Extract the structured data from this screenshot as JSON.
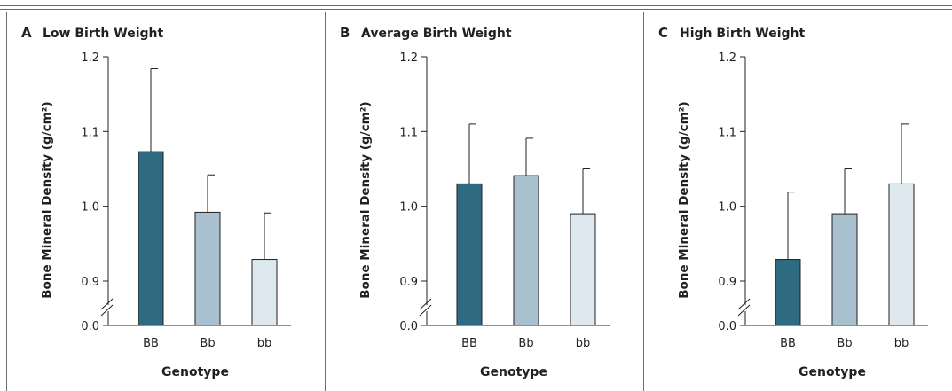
{
  "colors": {
    "BB": "#2e6a80",
    "Bb": "#a9c1cf",
    "bb": "#dde8ef",
    "axis": "#231f20",
    "rule": "#6d6e71"
  },
  "chart_data": [
    {
      "type": "bar",
      "panel_letter": "A",
      "title": "Low Birth Weight",
      "xlabel": "Genotype",
      "ylabel": "Bone Mineral Density (g/cm²)",
      "ylim": [
        0.85,
        1.2
      ],
      "yticks": [
        "0.0",
        "0.9",
        "1.0",
        "1.1",
        "1.2"
      ],
      "axis_break": true,
      "categories": [
        "BB",
        "Bb",
        "bb"
      ],
      "values": [
        1.073,
        0.992,
        0.929
      ],
      "error_upper": [
        1.184,
        1.042,
        0.991
      ],
      "grid": false,
      "legend": "none"
    },
    {
      "type": "bar",
      "panel_letter": "B",
      "title": "Average Birth Weight",
      "xlabel": "Genotype",
      "ylabel": "Bone Mineral Density (g/cm²)",
      "ylim": [
        0.85,
        1.2
      ],
      "yticks": [
        "0.0",
        "0.9",
        "1.0",
        "1.1",
        "1.2"
      ],
      "axis_break": true,
      "categories": [
        "BB",
        "Bb",
        "bb"
      ],
      "values": [
        1.03,
        1.041,
        0.99
      ],
      "error_upper": [
        1.11,
        1.091,
        1.05
      ],
      "grid": false,
      "legend": "none"
    },
    {
      "type": "bar",
      "panel_letter": "C",
      "title": "High Birth Weight",
      "xlabel": "Genotype",
      "ylabel": "Bone Mineral Density (g/cm²)",
      "ylim": [
        0.85,
        1.2
      ],
      "yticks": [
        "0.0",
        "0.9",
        "1.0",
        "1.1",
        "1.2"
      ],
      "axis_break": true,
      "categories": [
        "BB",
        "Bb",
        "bb"
      ],
      "values": [
        0.929,
        0.99,
        1.03
      ],
      "error_upper": [
        1.019,
        1.05,
        1.11
      ],
      "grid": false,
      "legend": "none"
    }
  ]
}
